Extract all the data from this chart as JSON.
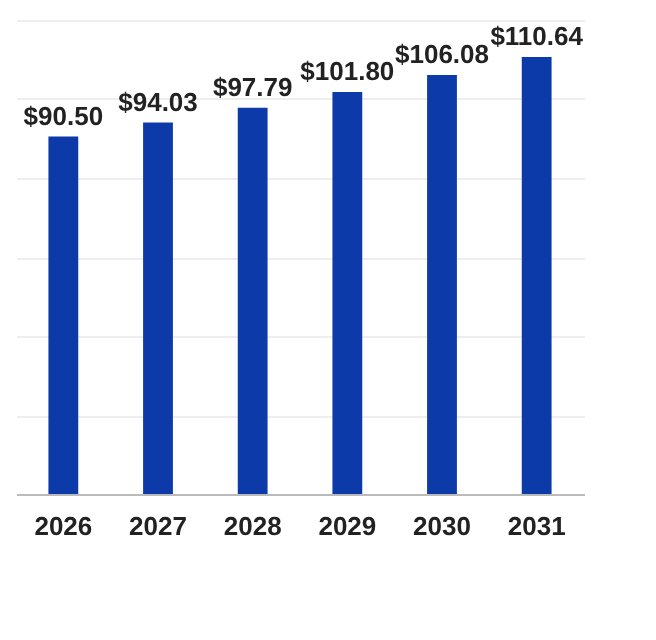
{
  "chart_data": {
    "type": "bar",
    "categories": [
      "2026",
      "2027",
      "2028",
      "2029",
      "2030",
      "2031"
    ],
    "values": [
      90.5,
      94.03,
      97.79,
      101.8,
      106.08,
      110.64
    ],
    "value_labels": [
      "$90.50",
      "$94.03",
      "$97.79",
      "$101.80",
      "$106.08",
      "$110.64"
    ],
    "color": "#0d3aa9",
    "grid": "y",
    "tick_labels": "x"
  }
}
